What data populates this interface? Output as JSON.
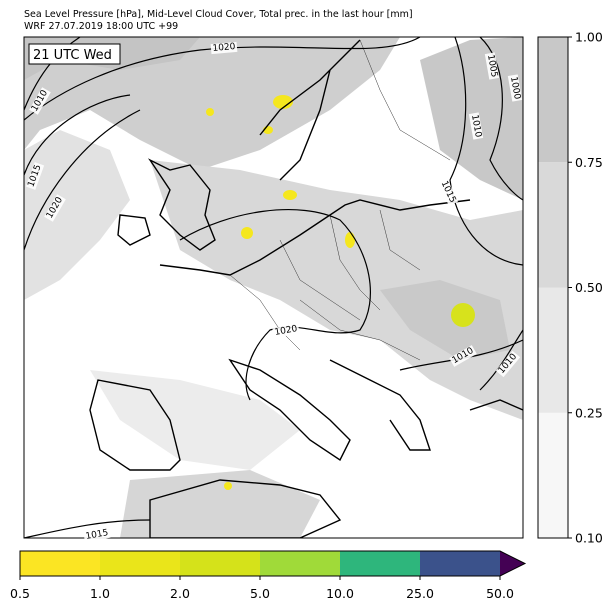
{
  "header": {
    "line1": "Sea Level Pressure [hPa], Mid-Level Cloud Cover, Total prec. in the last hour [mm]",
    "line2": "WRF 27.07.2019 18:00 UTC +99"
  },
  "map": {
    "time_label": "21 UTC Wed",
    "isobar_labels": [
      "1020",
      "1010",
      "1015",
      "1020",
      "1005",
      "1000",
      "1010",
      "1015",
      "1020",
      "1010",
      "1010",
      "1015"
    ]
  },
  "cloud_colorbar": {
    "ticks": [
      "0.10",
      "0.25",
      "0.50",
      "0.75",
      "1.00"
    ]
  },
  "precip_colorbar": {
    "ticks": [
      "0.5",
      "1.0",
      "2.0",
      "5.0",
      "10.0",
      "25.0",
      "50.0"
    ]
  }
}
